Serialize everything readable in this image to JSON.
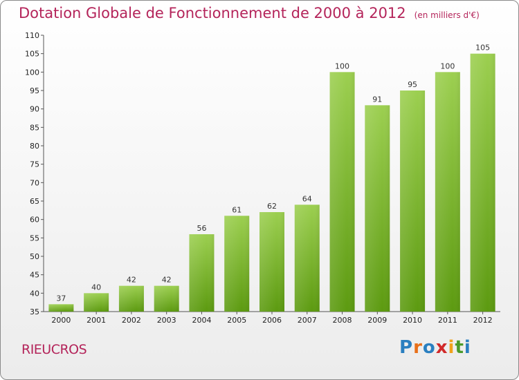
{
  "title": "Dotation Globale de Fonctionnement de 2000 à 2012",
  "subtitle": "(en milliers d'€)",
  "commune": "RIEUCROS",
  "logo": {
    "letters": [
      "P",
      "r",
      "o",
      "x",
      "i",
      "t",
      "i"
    ],
    "colors": [
      "#2a7fc0",
      "#e8701a",
      "#2a7fc0",
      "#d12a2a",
      "#f0a21b",
      "#4a9a2a",
      "#2a7fc0"
    ]
  },
  "colors": {
    "bar_top": "#9ccf50",
    "bar_bottom": "#5c9a10",
    "title": "#b4245a"
  },
  "chart_data": {
    "type": "bar",
    "categories": [
      "2000",
      "2001",
      "2002",
      "2003",
      "2004",
      "2005",
      "2006",
      "2007",
      "2008",
      "2009",
      "2010",
      "2011",
      "2012"
    ],
    "values": [
      37,
      40,
      42,
      42,
      56,
      61,
      62,
      64,
      100,
      91,
      95,
      100,
      105
    ],
    "ylim": [
      35,
      110
    ],
    "yticks": [
      35,
      40,
      45,
      50,
      55,
      60,
      65,
      70,
      75,
      80,
      85,
      90,
      95,
      100,
      105,
      110
    ],
    "grid": false,
    "data_labels": true
  }
}
